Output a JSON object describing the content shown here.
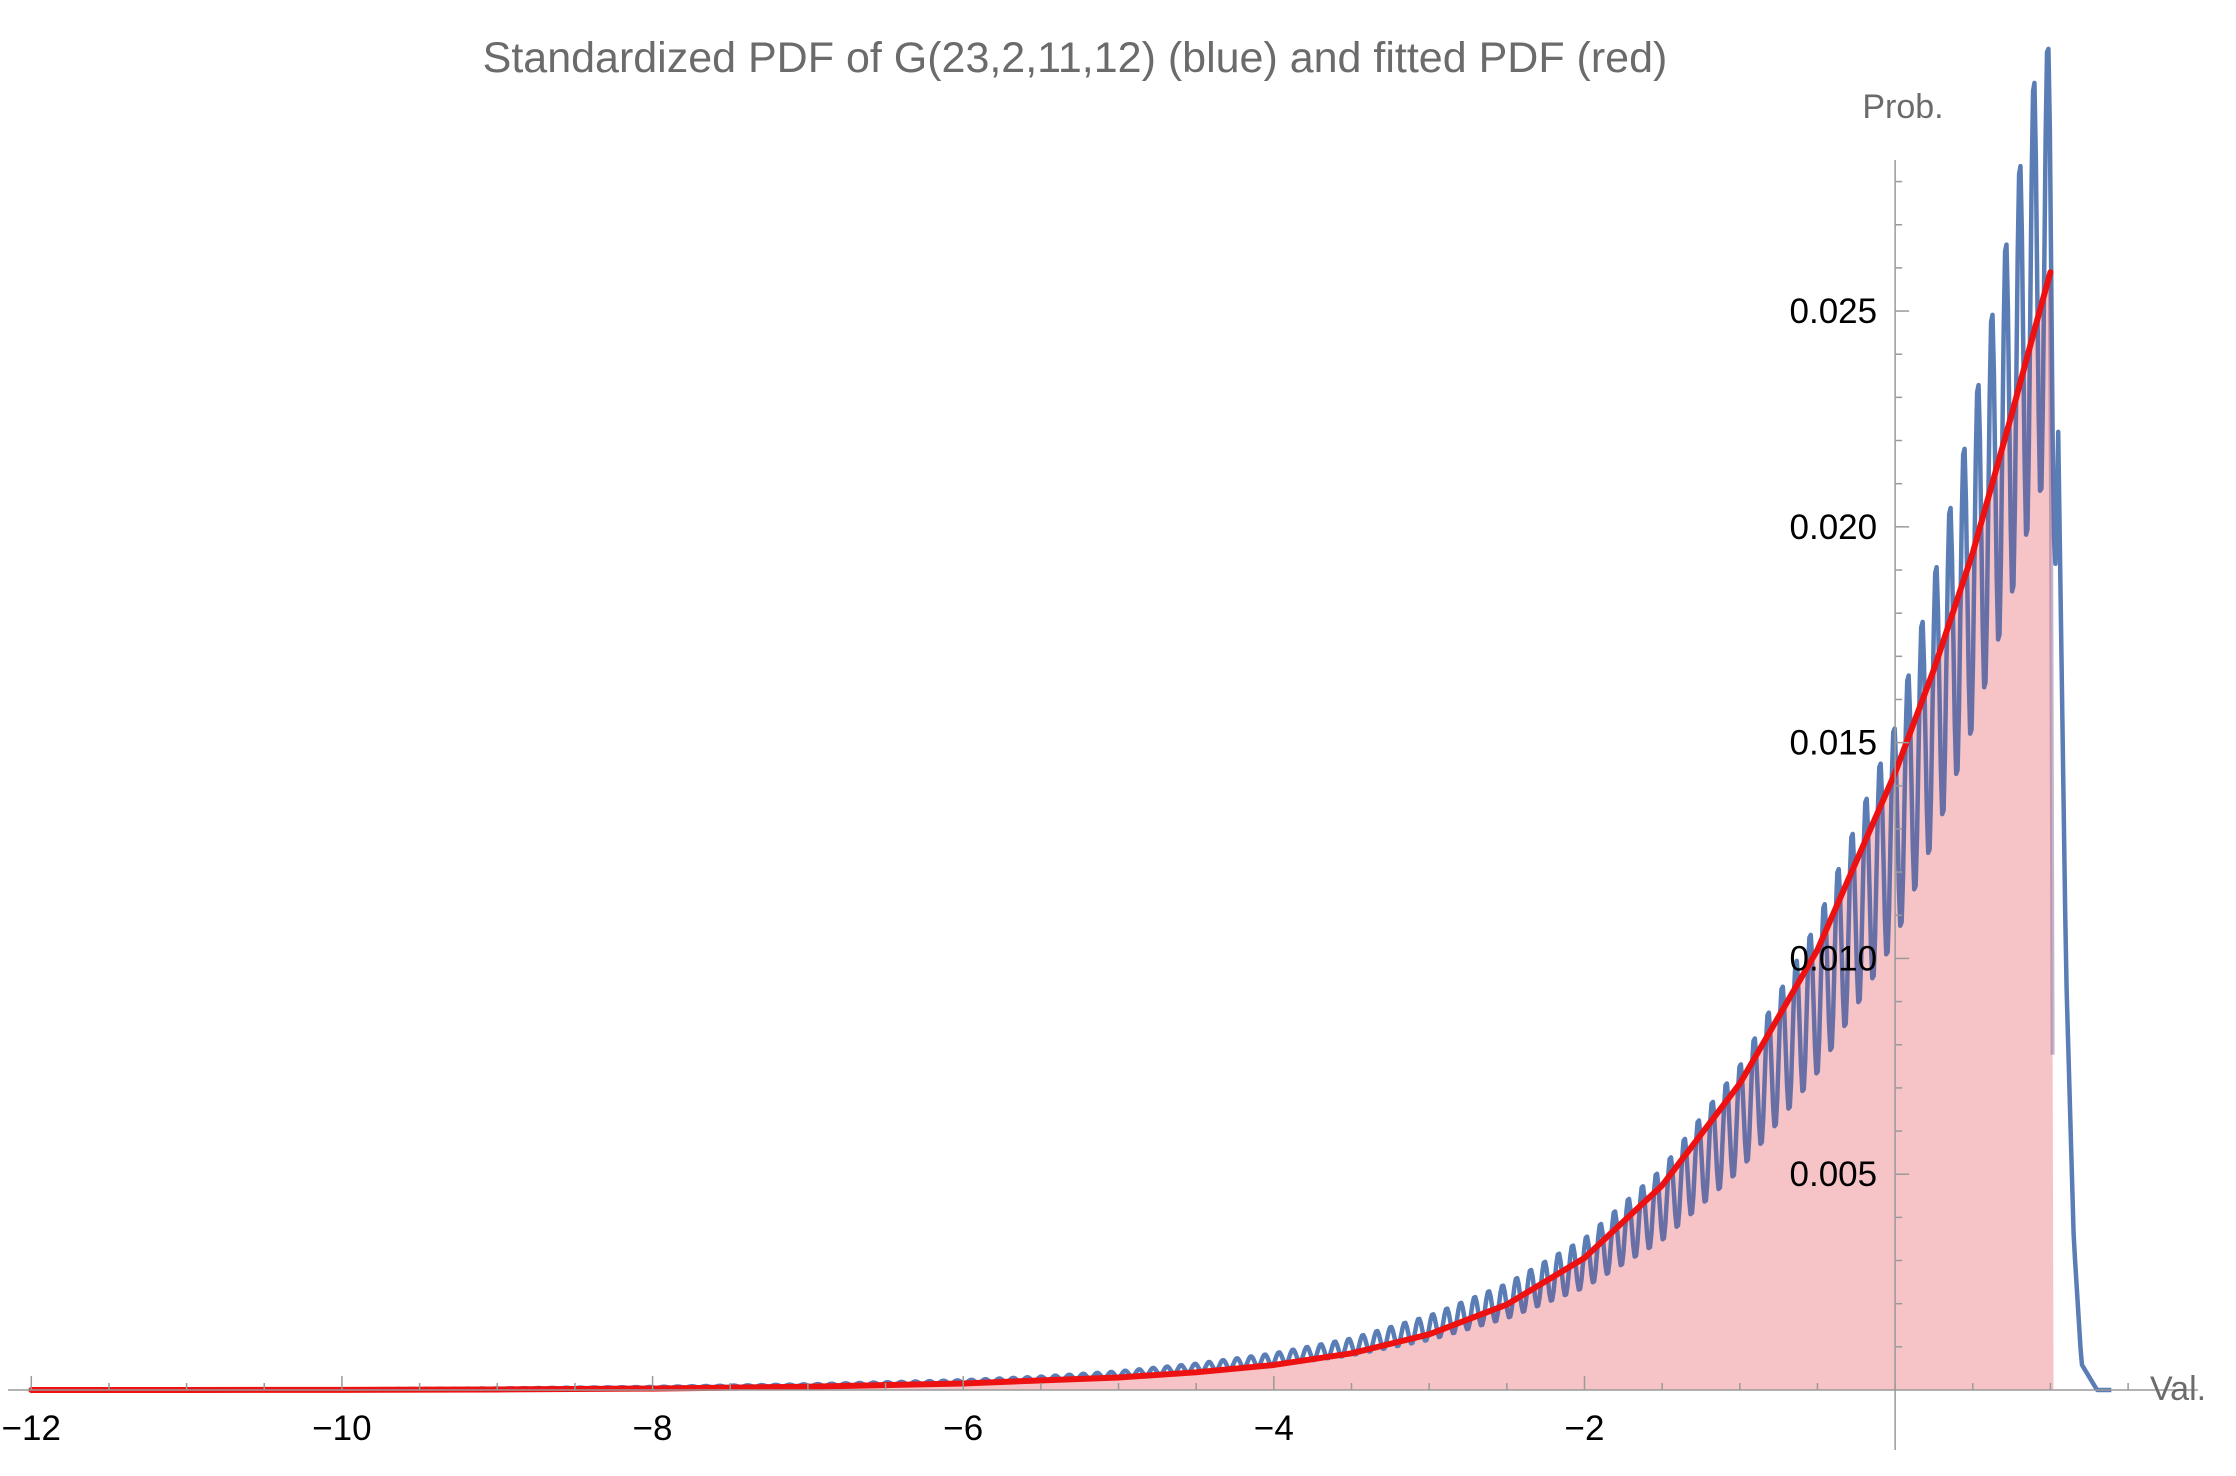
{
  "chart_data": {
    "type": "area",
    "title": "Standardized PDF of G(23,2,11,12)  (blue) and fitted PDF (red)",
    "xlabel": "Val.",
    "ylabel": "Prob.",
    "xlim": [
      -12.15,
      1.95
    ],
    "ylim": [
      0,
      0.0285
    ],
    "x_ticks": [
      -12,
      -10,
      -8,
      -6,
      -4,
      -2
    ],
    "x_tick_labels": [
      "−12",
      "−10",
      "−8",
      "−6",
      "−4",
      "−2"
    ],
    "y_ticks": [
      0.005,
      0.01,
      0.015,
      0.02,
      0.025
    ],
    "y_tick_labels": [
      "0.005",
      "0.010",
      "0.015",
      "0.020",
      "0.025"
    ],
    "x_minor_step": 0.5,
    "y_minor_step": 0.001,
    "grid": false,
    "legend": "none",
    "series": [
      {
        "color": "#5b7db5",
        "points": [
          [
            -12.0,
            0.0
          ],
          [
            -11.0,
            4e-06
          ],
          [
            -10.0,
            1.2e-05
          ],
          [
            -9.0,
            3e-05
          ],
          [
            -8.0,
            6e-05
          ],
          [
            -7.0,
            0.00011
          ],
          [
            -6.0,
            0.00019
          ],
          [
            -5.5,
            0.00026
          ],
          [
            -5.0,
            0.00036
          ],
          [
            -4.5,
            0.00051
          ],
          [
            -4.0,
            0.00071
          ],
          [
            -3.5,
            0.001
          ],
          [
            -3.0,
            0.00144
          ],
          [
            -2.5,
            0.00206
          ],
          [
            -2.0,
            0.00294
          ],
          [
            -1.5,
            0.0043
          ],
          [
            -1.0,
            0.0063
          ],
          [
            -0.5,
            0.0091
          ],
          [
            0.0,
            0.0129
          ],
          [
            0.25,
            0.0158
          ],
          [
            0.5,
            0.019
          ],
          [
            0.75,
            0.0228
          ],
          [
            0.9,
            0.0255
          ],
          [
            1.0,
            0.0262
          ],
          [
            1.05,
            0.0222
          ],
          [
            1.1,
            0.0098
          ],
          [
            1.15,
            0.0035
          ],
          [
            1.2,
            0.0006
          ],
          [
            1.3,
            0.0
          ],
          [
            1.4,
            0.0
          ]
        ],
        "oscillation": {
          "period": 0.09,
          "relative_amplitude": 0.2,
          "note_visible": false
        }
      },
      {
        "color": "#ee1111",
        "fill": "#f4b6bb",
        "points": [
          [
            -12.0,
            0.0
          ],
          [
            -11.0,
            8e-07
          ],
          [
            -10.0,
            3.5e-06
          ],
          [
            -9.0,
            1.2e-05
          ],
          [
            -8.0,
            3.3e-05
          ],
          [
            -7.0,
            7.5e-05
          ],
          [
            -6.0,
            0.000152
          ],
          [
            -5.0,
            0.00029
          ],
          [
            -4.5,
            0.00041
          ],
          [
            -4.0,
            0.00058
          ],
          [
            -3.5,
            0.00085
          ],
          [
            -3.0,
            0.00129
          ],
          [
            -2.5,
            0.00198
          ],
          [
            -2.0,
            0.00306
          ],
          [
            -1.5,
            0.00474
          ],
          [
            -1.0,
            0.0071
          ],
          [
            -0.5,
            0.0102
          ],
          [
            0.0,
            0.0143
          ],
          [
            0.25,
            0.0167
          ],
          [
            0.5,
            0.0194
          ],
          [
            0.75,
            0.0226
          ],
          [
            0.9,
            0.0246
          ],
          [
            1.0,
            0.0259
          ],
          [
            1.02,
            0.0
          ],
          [
            1.1,
            0.0
          ]
        ]
      }
    ]
  }
}
